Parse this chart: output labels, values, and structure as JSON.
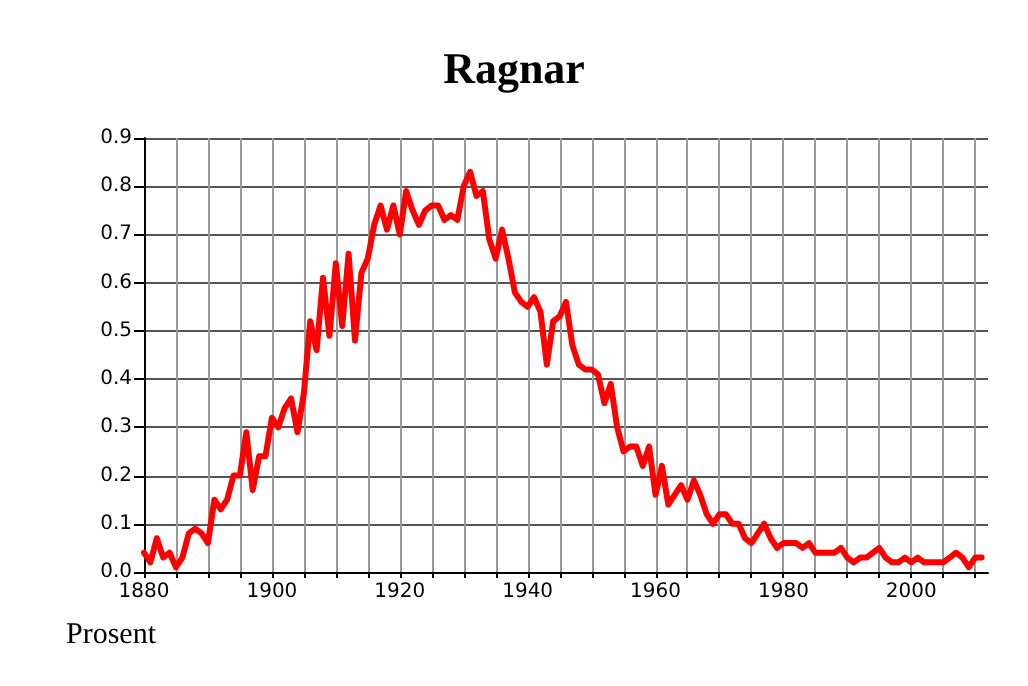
{
  "chart_data": {
    "type": "line",
    "title": "Ragnar",
    "ylabel": "Prosent",
    "x": [
      1880,
      1881,
      1882,
      1883,
      1884,
      1885,
      1886,
      1887,
      1888,
      1889,
      1890,
      1891,
      1892,
      1893,
      1894,
      1895,
      1896,
      1897,
      1898,
      1899,
      1900,
      1901,
      1902,
      1903,
      1904,
      1905,
      1906,
      1907,
      1908,
      1909,
      1910,
      1911,
      1912,
      1913,
      1914,
      1915,
      1916,
      1917,
      1918,
      1919,
      1920,
      1921,
      1922,
      1923,
      1924,
      1925,
      1926,
      1927,
      1928,
      1929,
      1930,
      1931,
      1932,
      1933,
      1934,
      1935,
      1936,
      1937,
      1938,
      1939,
      1940,
      1941,
      1942,
      1943,
      1944,
      1945,
      1946,
      1947,
      1948,
      1949,
      1950,
      1951,
      1952,
      1953,
      1954,
      1955,
      1956,
      1957,
      1958,
      1959,
      1960,
      1961,
      1962,
      1963,
      1964,
      1965,
      1966,
      1967,
      1968,
      1969,
      1970,
      1971,
      1972,
      1973,
      1974,
      1975,
      1976,
      1977,
      1978,
      1979,
      1980,
      1981,
      1982,
      1983,
      1984,
      1985,
      1986,
      1987,
      1988,
      1989,
      1990,
      1991,
      1992,
      1993,
      1994,
      1995,
      1996,
      1997,
      1998,
      1999,
      2000,
      2001,
      2002,
      2003,
      2004,
      2005,
      2006,
      2007,
      2008,
      2009,
      2010,
      2011
    ],
    "series": [
      {
        "color": "#ff0000",
        "values": [
          0.04,
          0.02,
          0.07,
          0.03,
          0.04,
          0.01,
          0.03,
          0.08,
          0.09,
          0.08,
          0.06,
          0.15,
          0.13,
          0.15,
          0.2,
          0.2,
          0.29,
          0.17,
          0.24,
          0.24,
          0.32,
          0.3,
          0.34,
          0.36,
          0.29,
          0.37,
          0.52,
          0.46,
          0.61,
          0.49,
          0.64,
          0.51,
          0.66,
          0.48,
          0.62,
          0.65,
          0.72,
          0.76,
          0.71,
          0.76,
          0.7,
          0.79,
          0.75,
          0.72,
          0.75,
          0.76,
          0.76,
          0.73,
          0.74,
          0.73,
          0.8,
          0.83,
          0.78,
          0.79,
          0.69,
          0.65,
          0.71,
          0.65,
          0.58,
          0.56,
          0.55,
          0.57,
          0.54,
          0.43,
          0.52,
          0.53,
          0.56,
          0.47,
          0.43,
          0.42,
          0.42,
          0.41,
          0.35,
          0.39,
          0.3,
          0.25,
          0.26,
          0.26,
          0.22,
          0.26,
          0.16,
          0.22,
          0.14,
          0.16,
          0.18,
          0.15,
          0.19,
          0.16,
          0.12,
          0.1,
          0.12,
          0.12,
          0.1,
          0.1,
          0.07,
          0.06,
          0.08,
          0.1,
          0.07,
          0.05,
          0.06,
          0.06,
          0.06,
          0.05,
          0.06,
          0.04,
          0.04,
          0.04,
          0.04,
          0.05,
          0.03,
          0.02,
          0.03,
          0.03,
          0.04,
          0.05,
          0.03,
          0.02,
          0.02,
          0.03,
          0.02,
          0.03,
          0.02,
          0.02,
          0.02,
          0.02,
          0.03,
          0.04,
          0.03,
          0.01,
          0.03,
          0.03
        ]
      }
    ],
    "xlim": [
      1880,
      2012
    ],
    "xticks": [
      1880,
      1900,
      1920,
      1940,
      1960,
      1980,
      2000
    ],
    "ylim": [
      0,
      0.9
    ],
    "yticks": [
      {
        "value": 0,
        "label": "0.0"
      },
      {
        "value": 0.1,
        "label": "0.1"
      },
      {
        "value": 0.2,
        "label": "0.2"
      },
      {
        "value": 0.3,
        "label": "0.3"
      },
      {
        "value": 0.4,
        "label": "0.4"
      },
      {
        "value": 0.5,
        "label": "0.5"
      },
      {
        "value": 0.6,
        "label": "0.6"
      },
      {
        "value": 0.7,
        "label": "0.7"
      },
      {
        "value": 0.8,
        "label": "0.8"
      },
      {
        "value": 0.9,
        "label": "0.9"
      }
    ],
    "grid": true,
    "marker": "none",
    "line_style": "solid"
  }
}
